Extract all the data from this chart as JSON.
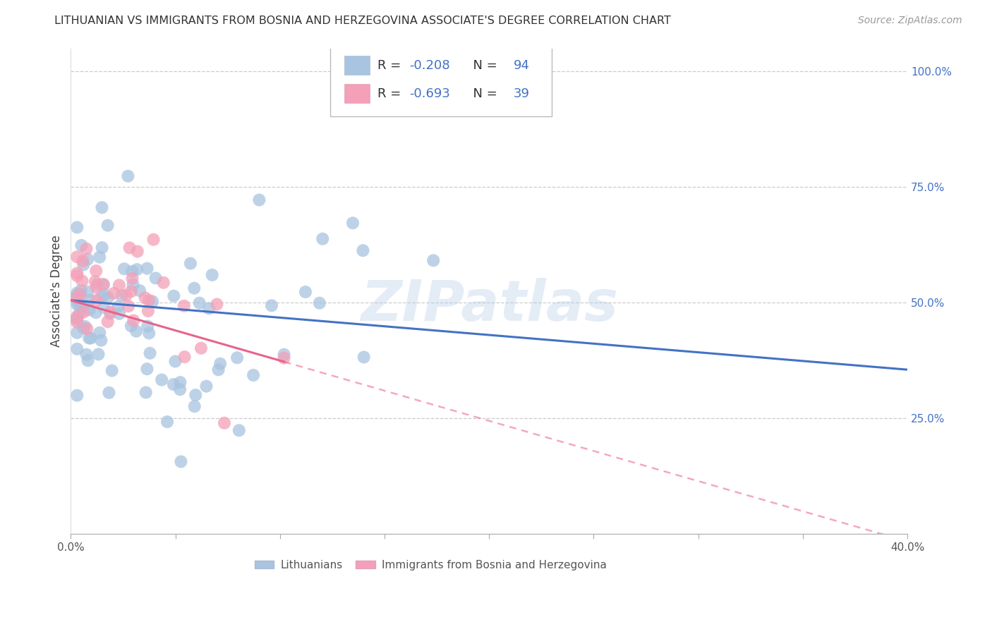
{
  "title": "LITHUANIAN VS IMMIGRANTS FROM BOSNIA AND HERZEGOVINA ASSOCIATE'S DEGREE CORRELATION CHART",
  "source": "Source: ZipAtlas.com",
  "ylabel": "Associate's Degree",
  "xlim": [
    0.0,
    0.4
  ],
  "ylim": [
    0.0,
    1.05
  ],
  "yticks": [
    0.25,
    0.5,
    0.75,
    1.0
  ],
  "ytick_labels": [
    "25.0%",
    "50.0%",
    "75.0%",
    "100.0%"
  ],
  "xticks": [
    0.0,
    0.05,
    0.1,
    0.15,
    0.2,
    0.25,
    0.3,
    0.35,
    0.4
  ],
  "xtick_labels_show": [
    "0.0%",
    "",
    "",
    "",
    "",
    "",
    "",
    "",
    "40.0%"
  ],
  "blue_R": -0.208,
  "blue_N": 94,
  "pink_R": -0.693,
  "pink_N": 39,
  "blue_color": "#a8c4e0",
  "pink_color": "#f4a0b8",
  "blue_line_color": "#4472c4",
  "pink_line_color": "#e8638a",
  "legend_label_blue": "Lithuanians",
  "legend_label_pink": "Immigrants from Bosnia and Herzegovina",
  "watermark": "ZIPatlas",
  "blue_seed": 42,
  "pink_seed": 17
}
